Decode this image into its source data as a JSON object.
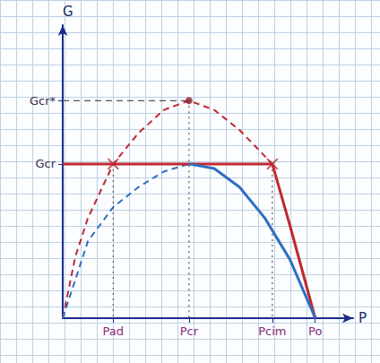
{
  "chart_data": {
    "type": "line",
    "x_label": "P",
    "y_label": "G",
    "xlim": [
      0,
      1.15
    ],
    "ylim": [
      0,
      1.9
    ],
    "xticks": [
      {
        "value": 0.2,
        "label": "Pad"
      },
      {
        "value": 0.5,
        "label": "Pcr"
      },
      {
        "value": 0.83,
        "label": "Pcim"
      },
      {
        "value": 1,
        "label": "Po"
      }
    ],
    "yticks": [
      {
        "value": 1,
        "label": "Gcr"
      },
      {
        "value": 1.41,
        "label": "Gcr*"
      }
    ],
    "series": [
      {
        "type": "line",
        "color": "#c0282e",
        "line_style": "dashed",
        "marker": "none",
        "x": [
          0,
          0.05,
          0.1,
          0.2,
          0.3,
          0.4,
          0.5,
          0.6,
          0.7,
          0.83
        ],
        "values": [
          0,
          0.4,
          0.65,
          1,
          1.2,
          1.35,
          1.41,
          1.35,
          1.22,
          1
        ]
      },
      {
        "type": "line",
        "color": "#c0282e",
        "line_style": "solid",
        "marker": "none",
        "x": [
          0,
          0.83,
          0.9,
          1
        ],
        "values": [
          1,
          1,
          0.6,
          0
        ]
      },
      {
        "type": "line",
        "color": "#2f6fc0",
        "line_style": "dashed",
        "marker": "none",
        "x": [
          0,
          0.1,
          0.2,
          0.3,
          0.4,
          0.5
        ],
        "values": [
          0,
          0.5,
          0.72,
          0.85,
          0.95,
          1
        ]
      },
      {
        "type": "line",
        "color": "#2f6fc0",
        "line_style": "solid",
        "marker": "none",
        "x": [
          0.5,
          0.6,
          0.7,
          0.8,
          0.9,
          1
        ],
        "values": [
          1,
          0.97,
          0.85,
          0.65,
          0.38,
          0
        ]
      },
      {
        "type": "line",
        "color": "#555555",
        "line_style": "dotted",
        "marker": "none",
        "x": [
          0.2,
          0.2
        ],
        "values": [
          1,
          0
        ]
      },
      {
        "type": "line",
        "color": "#555555",
        "line_style": "dotted",
        "marker": "none",
        "x": [
          0.5,
          0.5
        ],
        "values": [
          1.41,
          0
        ]
      },
      {
        "type": "line",
        "color": "#555555",
        "line_style": "dotted",
        "marker": "none",
        "x": [
          0.83,
          0.83
        ],
        "values": [
          1,
          0
        ]
      },
      {
        "type": "line",
        "color": "#555555",
        "line_style": "dashed",
        "marker": "none",
        "x": [
          0,
          0.5
        ],
        "values": [
          1.41,
          1.41
        ]
      },
      {
        "type": "scatter",
        "color": "#c0282e",
        "marker": "cross",
        "x": [
          0.2,
          0.83
        ],
        "values": [
          1,
          1
        ]
      },
      {
        "type": "scatter",
        "color": "#8a2030",
        "marker": "circle",
        "x": [
          0.5
        ],
        "values": [
          1.41
        ]
      }
    ]
  }
}
